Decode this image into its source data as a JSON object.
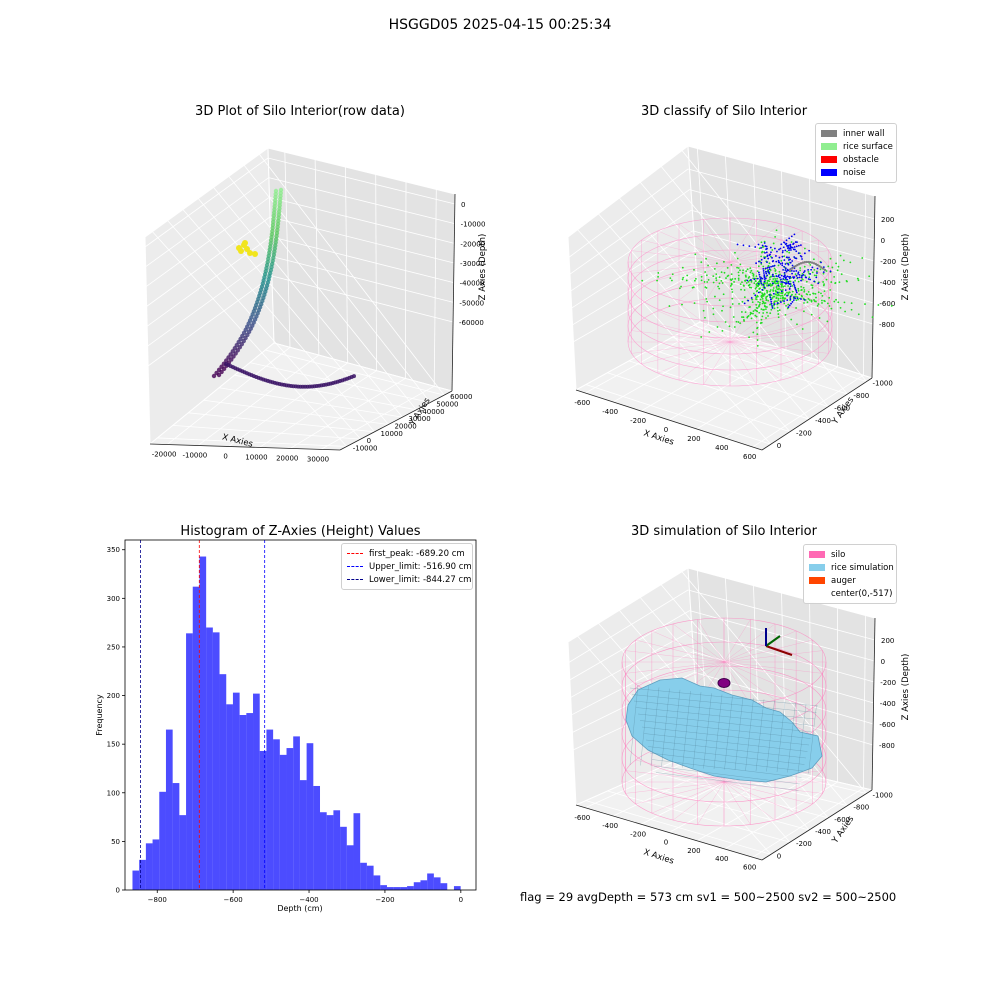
{
  "suptitle": "HSGGD05 2025-04-15 00:25:34",
  "footer": "flag = 29  avgDepth = 573 cm  sv1 = 500~2500  sv2 = 500~2500",
  "chart_data": [
    {
      "type": "scatter3d",
      "title": "3D Plot of Silo Interior(row data)",
      "xlabel": "X Axies",
      "ylabel": "Y Axies",
      "zlabel": "Z Axies (Depth)",
      "x_ticks": [
        "-20000",
        "-10000",
        "0",
        "10000",
        "20000",
        "30000"
      ],
      "y_ticks": [
        "-10000",
        "0",
        "10000",
        "20000",
        "30000",
        "40000",
        "50000",
        "60000"
      ],
      "z_ticks": [
        "0",
        "-10000",
        "-20000",
        "-30000",
        "-40000",
        "-50000",
        "-60000"
      ],
      "xlim": [
        -24000,
        38000
      ],
      "ylim": [
        -13000,
        64000
      ],
      "zlim": [
        -68000,
        2000
      ]
    },
    {
      "type": "scatter3d",
      "title": "3D classify of Silo Interior",
      "xlabel": "X Axies",
      "ylabel": "Y Axies",
      "zlabel": "Z Axies (Depth)",
      "x_ticks": [
        "-600",
        "-400",
        "-200",
        "0",
        "200",
        "400",
        "600"
      ],
      "y_ticks": [
        "0",
        "-200",
        "-400",
        "-600",
        "-800",
        "-1000"
      ],
      "z_ticks": [
        "200",
        "0",
        "-200",
        "-400",
        "-600",
        "-800"
      ],
      "legend": [
        {
          "label": "inner wall",
          "color": "#808080"
        },
        {
          "label": "rice surface",
          "color": "#90ee90"
        },
        {
          "label": "obstacle",
          "color": "#ff0000"
        },
        {
          "label": "noise",
          "color": "#0000ff"
        }
      ]
    },
    {
      "type": "bar",
      "title": "Histogram of Z-Axies (Height) Values",
      "xlabel": "Depth (cm)",
      "ylabel": "Frequency",
      "xlim": [
        -885,
        40
      ],
      "ylim": [
        0,
        360
      ],
      "x_ticks": [
        -800,
        -600,
        -400,
        -200,
        0
      ],
      "y_ticks": [
        0,
        50,
        100,
        150,
        200,
        250,
        300,
        350
      ],
      "bin_start": -865.3,
      "bin_width": 17.65,
      "values": [
        20,
        31,
        48,
        52,
        101,
        165,
        110,
        77,
        264,
        312,
        343,
        270,
        265,
        222,
        191,
        203,
        180,
        182,
        202,
        143,
        165,
        155,
        139,
        146,
        158,
        113,
        151,
        107,
        80,
        77,
        82,
        65,
        46,
        79,
        28,
        25,
        15,
        5,
        3,
        3,
        3,
        4,
        8,
        10,
        17,
        13,
        7,
        0,
        4
      ],
      "color": "#0000ff",
      "vlines": [
        {
          "label": "first_peak: -689.20 cm",
          "x": -689.2,
          "color": "#ff0000"
        },
        {
          "label": "Upper_limit: -516.90 cm",
          "x": -516.9,
          "color": "#0000ff"
        },
        {
          "label": "Lower_limit: -844.27 cm",
          "x": -844.27,
          "color": "#00008b"
        }
      ]
    },
    {
      "type": "surface3d",
      "title": "3D simulation of Silo Interior",
      "xlabel": "X Axies",
      "ylabel": "Y Axies",
      "zlabel": "Z Axies (Depth)",
      "x_ticks": [
        "-600",
        "-400",
        "-200",
        "0",
        "200",
        "400",
        "600"
      ],
      "y_ticks": [
        "0",
        "-200",
        "-400",
        "-600",
        "-800",
        "-1000"
      ],
      "z_ticks": [
        "200",
        "0",
        "-200",
        "-400",
        "-600",
        "-800"
      ],
      "legend": [
        {
          "label": "silo",
          "color": "#ff69b4"
        },
        {
          "label": "rice simulation",
          "color": "#87ceeb"
        },
        {
          "label": "auger",
          "color": "#ff4500"
        },
        {
          "label": "center(0,-517)",
          "color": ""
        }
      ]
    }
  ]
}
